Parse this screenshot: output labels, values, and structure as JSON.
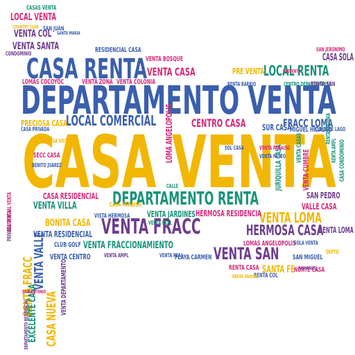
{
  "words": [
    {
      "text": "CASA VENTA",
      "color": "yellow"
    },
    {
      "text": "DEPARTAMENTO VENTA",
      "color": "blue"
    },
    {
      "text": "CASA RENTA",
      "color": "blue"
    },
    {
      "text": "DEPARTAMENTO RENTA",
      "color": "green"
    },
    {
      "text": "VENTA FRACC",
      "color": "purple"
    },
    {
      "text": "VENTA SAN",
      "color": "purple"
    },
    {
      "text": "HERMOSA CASA",
      "color": "purple"
    },
    {
      "text": "VENTA LOMA",
      "color": "yellow"
    },
    {
      "text": "LOCAL RENTA",
      "color": "green"
    },
    {
      "text": "LOCAL COMERCIAL",
      "color": "blue"
    },
    {
      "text": "VENTA CASA",
      "color": "pink"
    },
    {
      "text": "CENTRO CASA",
      "color": "pink"
    },
    {
      "text": "FRACC LOMA",
      "color": "blue"
    },
    {
      "text": "LOCAL VENTA",
      "color": "pink"
    },
    {
      "text": "VENTA COL",
      "color": "purple"
    },
    {
      "text": "VENTA SANTA",
      "color": "purple"
    },
    {
      "text": "VENTA FRACCIONAMIENTO",
      "color": "green"
    },
    {
      "text": "RENTA FRACC",
      "color": "yellow"
    },
    {
      "text": "CASA NUEVA",
      "color": "yellow"
    },
    {
      "text": "VENTA VALLE",
      "color": "blue"
    },
    {
      "text": "VENTA VILLA",
      "color": "green"
    },
    {
      "text": "BONITA CASA",
      "color": "yellow"
    },
    {
      "text": "CASA SOLA",
      "color": "purple"
    },
    {
      "text": "PRE VENTA",
      "color": "yellow"
    },
    {
      "text": "VENTA BOSQUE",
      "color": "pink"
    },
    {
      "text": "RESIDENCIAL CASA",
      "color": "blue"
    },
    {
      "text": "PRECIOSA CASA",
      "color": "yellow"
    },
    {
      "text": "VENTA RESIDENCIAL",
      "color": "blue"
    },
    {
      "text": "CASA RESIDENCIAL",
      "color": "pink"
    },
    {
      "text": "SAN PEDRO",
      "color": "purple"
    },
    {
      "text": "VALLE CASA",
      "color": "pink"
    },
    {
      "text": "HERMOSA RESIDENCIA",
      "color": "pink"
    },
    {
      "text": "VENTA JARDINES",
      "color": "green"
    },
    {
      "text": "SANTA FE",
      "color": "yellow"
    },
    {
      "text": "LOMAS ANGELOPOLIS",
      "color": "pink"
    },
    {
      "text": "VENTA CENTRO",
      "color": "blue"
    },
    {
      "text": "CLUB GOLF",
      "color": "blue"
    },
    {
      "text": "VENTA REAL",
      "color": "blue"
    },
    {
      "text": "EXCELENTE CASA",
      "color": "green"
    },
    {
      "text": "SUR CASA",
      "color": "blue"
    },
    {
      "text": "RENTA LOMA",
      "color": "purple"
    },
    {
      "text": "SAN MIGUEL",
      "color": "blue"
    },
    {
      "text": "LOMA ANGELOPOLIS",
      "color": "pink"
    },
    {
      "text": "VENTA CUMBRE",
      "color": "pink"
    },
    {
      "text": "JURIQUILLA CASA",
      "color": "green"
    },
    {
      "text": "CASA PARAISO",
      "color": "yellow"
    },
    {
      "text": "SAN JUAN",
      "color": "blue"
    },
    {
      "text": "SANTA MARIA",
      "color": "blue"
    },
    {
      "text": "CASAS VENTA",
      "color": "green"
    },
    {
      "text": "VENTA ZONA",
      "color": "pink"
    },
    {
      "text": "VENTA COLONIA",
      "color": "pink"
    },
    {
      "text": "PLAYA CARMEN",
      "color": "blue"
    },
    {
      "text": "RENTA CASA",
      "color": "pink"
    },
    {
      "text": "NORTE CASA",
      "color": "pink"
    },
    {
      "text": "RENTA COL",
      "color": "blue"
    },
    {
      "text": "LOMAS COCOYOC",
      "color": "pink"
    },
    {
      "text": "CASA PRIVADA",
      "color": "blue"
    },
    {
      "text": "SECC CASA",
      "color": "pink"
    },
    {
      "text": "BENITO JUAREZ",
      "color": "blue"
    },
    {
      "text": "CONDOMINIO",
      "color": "purple"
    },
    {
      "text": "VENTA DEPARTAMENTO",
      "color": "purple"
    },
    {
      "text": "SAN JERONIMO",
      "color": "pink"
    },
    {
      "text": "SOLA VENTA",
      "color": "blue"
    },
    {
      "text": "VENTA AMPL",
      "color": "purple"
    },
    {
      "text": "VENTA PARAISO",
      "color": "pink"
    },
    {
      "text": "MIGUEL HIDALGO",
      "color": "blue"
    },
    {
      "text": "CUMBRES LAGO",
      "color": "blue"
    },
    {
      "text": "RENTA UNIDAD",
      "color": "yellow"
    },
    {
      "text": "COUNTRY CLUB",
      "color": "yellow"
    },
    {
      "text": "CASA VISTA",
      "color": "yellow"
    },
    {
      "text": "PRIVADA VENTA",
      "color": "purple"
    },
    {
      "text": "SOL CASA",
      "color": "blue"
    },
    {
      "text": "VENTA PASEO",
      "color": "blue"
    },
    {
      "text": "VENTA CASAS",
      "color": "green"
    },
    {
      "text": "VISTA HERMOSA",
      "color": "blue"
    },
    {
      "text": "PREVENTA",
      "color": "pink"
    },
    {
      "text": "CASA CONDOMINIO",
      "color": "green"
    },
    {
      "text": "CENTRO DEPARTAMENTO",
      "color": "green"
    },
    {
      "text": "RENTA BARRIO",
      "color": "blue"
    },
    {
      "text": "RENTA SAN",
      "color": "purple"
    },
    {
      "text": "RENTA AMPL",
      "color": "green"
    },
    {
      "text": "DEPARTAMENTO RESIDENCIAL",
      "color": "purple"
    },
    {
      "text": "SAN ANTONIO",
      "color": "pink"
    },
    {
      "text": "RESIDENCIAL VENTA",
      "color": "pink"
    },
    {
      "text": "CALLE",
      "color": "green"
    },
    {
      "text": "VENTA REAL",
      "color": "green"
    },
    {
      "text": "RENTA COLONIA",
      "color": "green"
    },
    {
      "text": "SAN ANGEL",
      "color": "purple"
    },
    {
      "text": "DEPTO",
      "color": "yellow"
    }
  ]
}
